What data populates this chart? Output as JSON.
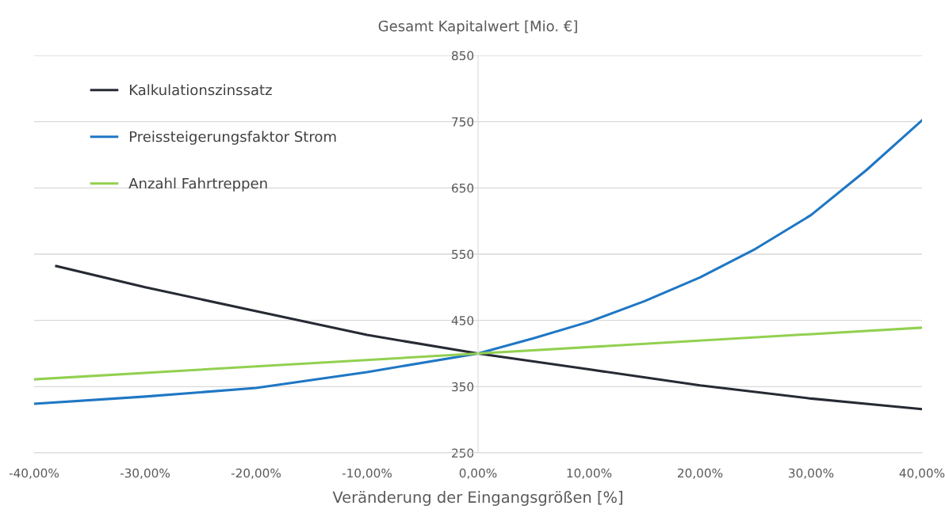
{
  "chart_data": {
    "type": "line",
    "title": "Gesamt Kapitalwert [Mio. €]",
    "xlabel": "Veränderung der Eingangsgrößen [%]",
    "series": [
      {
        "name": "Kalkulationszinssatz",
        "color": "#262a33",
        "x": [
          -38,
          -30,
          -20,
          -10,
          0,
          10,
          20,
          30,
          40
        ],
        "values": [
          532,
          500,
          464,
          428,
          400,
          376,
          352,
          332,
          316
        ]
      },
      {
        "name": "Preissteigerungsfaktor Strom",
        "color": "#1f77c4",
        "x": [
          -40,
          -30,
          -20,
          -10,
          0,
          5,
          10,
          15,
          20,
          25,
          30,
          35,
          40
        ],
        "values": [
          324,
          335,
          348,
          372,
          400,
          423,
          448,
          479,
          515,
          558,
          609,
          677,
          752
        ]
      },
      {
        "name": "Anzahl Fahrtreppen",
        "color": "#92d050",
        "x": [
          -40,
          0,
          40
        ],
        "values": [
          361,
          400,
          439
        ]
      }
    ],
    "xlim": [
      -40,
      40
    ],
    "xticks": [
      {
        "value": -40,
        "label": "-40,00%"
      },
      {
        "value": -30,
        "label": "-30,00%"
      },
      {
        "value": -20,
        "label": "-20,00%"
      },
      {
        "value": -10,
        "label": "-10,00%"
      },
      {
        "value": 0,
        "label": "0,00%"
      },
      {
        "value": 10,
        "label": "10,00%"
      },
      {
        "value": 20,
        "label": "20,00%"
      },
      {
        "value": 30,
        "label": "30,00%"
      },
      {
        "value": 40,
        "label": "40,00%"
      }
    ],
    "ylim": [
      250,
      850
    ],
    "yticks": [
      250,
      350,
      450,
      550,
      650,
      750,
      850
    ],
    "grid": "y",
    "legend": "top left",
    "marker": "none",
    "line_style": "solid"
  }
}
